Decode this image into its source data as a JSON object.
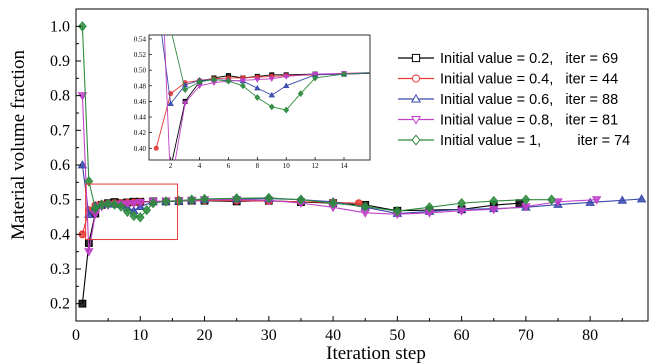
{
  "chart_data": {
    "type": "line",
    "xlabel": "Iteration step",
    "ylabel": "Material volume fraction",
    "xlim": [
      0,
      89
    ],
    "ylim": [
      0.15,
      1.05
    ],
    "xticks": [
      0,
      10,
      20,
      30,
      40,
      50,
      60,
      70,
      80
    ],
    "yticks": [
      0.2,
      0.3,
      0.4,
      0.5,
      0.6,
      0.7,
      0.8,
      0.9,
      1.0
    ],
    "xtick_labels": [
      "0",
      "10",
      "20",
      "30",
      "40",
      "50",
      "60",
      "70",
      "80"
    ],
    "ytick_labels": [
      "0.2",
      "0.3",
      "0.4",
      "0.5",
      "0.6",
      "0.7",
      "0.8",
      "0.9",
      "1.0"
    ],
    "grid": false,
    "legend_position": "top-right",
    "highlight_box": {
      "x": [
        1.5,
        15.8
      ],
      "y": [
        0.385,
        0.545
      ],
      "color": "#e53935"
    },
    "series": [
      {
        "name": "Initial value = 0.2,   iter = 69",
        "color": "#000000",
        "marker": "square",
        "x": [
          1,
          2,
          3,
          4,
          5,
          6,
          7,
          8,
          9,
          10,
          12,
          14,
          16,
          18,
          20,
          25,
          30,
          35,
          40,
          45,
          50,
          55,
          60,
          65,
          69
        ],
        "y": [
          0.2,
          0.375,
          0.46,
          0.485,
          0.49,
          0.493,
          0.49,
          0.492,
          0.494,
          0.494,
          0.495,
          0.495,
          0.496,
          0.497,
          0.497,
          0.495,
          0.497,
          0.493,
          0.49,
          0.485,
          0.468,
          0.47,
          0.472,
          0.484,
          0.49
        ]
      },
      {
        "name": "Initial value = 0.4,   iter = 44",
        "color": "#e53935",
        "marker": "circle",
        "x": [
          1,
          2,
          3,
          4,
          5,
          6,
          7,
          8,
          9,
          10,
          12,
          14,
          16,
          18,
          20,
          25,
          30,
          35,
          40,
          44
        ],
        "y": [
          0.4,
          0.47,
          0.484,
          0.487,
          0.489,
          0.49,
          0.49,
          0.491,
          0.492,
          0.493,
          0.494,
          0.495,
          0.496,
          0.497,
          0.498,
          0.497,
          0.496,
          0.494,
          0.492,
          0.49
        ]
      },
      {
        "name": "Initial value = 0.6,   iter = 88",
        "color": "#3949ab",
        "marker": "triangle-up",
        "x": [
          1,
          2,
          3,
          4,
          5,
          6,
          7,
          8,
          9,
          10,
          12,
          14,
          16,
          18,
          20,
          25,
          30,
          35,
          40,
          45,
          50,
          55,
          60,
          65,
          70,
          75,
          80,
          85,
          88
        ],
        "y": [
          0.6,
          0.457,
          0.481,
          0.487,
          0.488,
          0.487,
          0.486,
          0.477,
          0.468,
          0.48,
          0.494,
          0.495,
          0.496,
          0.498,
          0.5,
          0.502,
          0.503,
          0.5,
          0.494,
          0.478,
          0.46,
          0.466,
          0.472,
          0.474,
          0.478,
          0.486,
          0.492,
          0.498,
          0.502
        ]
      },
      {
        "name": "Initial value = 0.8,   iter = 81",
        "color": "#c040c8",
        "marker": "triangle-down",
        "x": [
          1,
          2,
          3,
          4,
          5,
          6,
          7,
          8,
          9,
          10,
          12,
          14,
          16,
          18,
          20,
          25,
          30,
          35,
          40,
          45,
          50,
          55,
          60,
          65,
          70,
          75,
          81
        ],
        "y": [
          0.8,
          0.35,
          0.458,
          0.48,
          0.484,
          0.486,
          0.487,
          0.488,
          0.489,
          0.492,
          0.495,
          0.496,
          0.497,
          0.498,
          0.5,
          0.5,
          0.498,
          0.49,
          0.478,
          0.462,
          0.458,
          0.462,
          0.468,
          0.472,
          0.48,
          0.494,
          0.5
        ]
      },
      {
        "name": "Initial value = 1,         iter = 74",
        "color": "#2e8b3e",
        "marker": "diamond",
        "x": [
          1,
          2,
          3,
          4,
          5,
          6,
          7,
          8,
          9,
          10,
          11,
          12,
          14,
          16,
          18,
          20,
          25,
          30,
          35,
          40,
          45,
          50,
          55,
          60,
          65,
          70,
          74
        ],
        "y": [
          1.0,
          0.553,
          0.475,
          0.485,
          0.488,
          0.486,
          0.48,
          0.465,
          0.453,
          0.449,
          0.47,
          0.49,
          0.495,
          0.497,
          0.5,
          0.502,
          0.504,
          0.505,
          0.5,
          0.49,
          0.48,
          0.467,
          0.478,
          0.49,
          0.496,
          0.5,
          0.5
        ]
      }
    ],
    "inset": {
      "xlim": [
        0.5,
        15.8
      ],
      "ylim": [
        0.385,
        0.545
      ],
      "xticks": [
        2,
        4,
        6,
        8,
        10,
        12,
        14
      ],
      "yticks": [
        0.4,
        0.42,
        0.44,
        0.46,
        0.48,
        0.5,
        0.52,
        0.54
      ],
      "xtick_labels": [
        "2",
        "4",
        "6",
        "8",
        "10",
        "12",
        "14"
      ],
      "ytick_labels": [
        "0.40",
        "0.42",
        "0.44",
        "0.46",
        "0.48",
        "0.50",
        "0.52",
        "0.54"
      ]
    }
  }
}
